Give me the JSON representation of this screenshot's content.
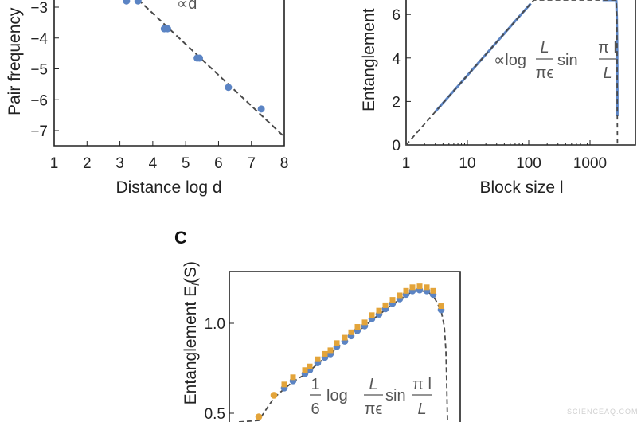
{
  "watermark": "SCIENCEAQ.COM",
  "colors": {
    "blue": "#5b84c4",
    "orange": "#e3a43a",
    "dashed": "#4a4a4a",
    "axis": "#222222",
    "annotation": "#555555"
  },
  "chart_data": [
    {
      "type": "scatter",
      "xlabel": "Distance log d",
      "ylabel": "Pair frequency",
      "annotation": "∝d",
      "xlim": [
        1,
        8
      ],
      "ylim": [
        -7.5,
        -2.7
      ],
      "xticks": [
        "1",
        "2",
        "3",
        "4",
        "5",
        "6",
        "7",
        "8"
      ],
      "yticks": [
        "−3",
        "−4",
        "−5",
        "−6",
        "−7"
      ],
      "points": [
        [
          3.2,
          -2.8
        ],
        [
          3.55,
          -2.8
        ],
        [
          4.35,
          -3.7
        ],
        [
          4.45,
          -3.7
        ],
        [
          5.35,
          -4.65
        ],
        [
          5.42,
          -4.65
        ],
        [
          6.3,
          -5.6
        ],
        [
          7.3,
          -6.3
        ]
      ],
      "fit_line": [
        [
          3.55,
          -2.75
        ],
        [
          8,
          -7.2
        ]
      ]
    },
    {
      "type": "line",
      "xlabel": "Block size l",
      "ylabel": "Entanglement",
      "xscale": "log",
      "xlim": [
        1,
        5000
      ],
      "ylim": [
        0,
        6.8
      ],
      "xticks": [
        "1",
        "10",
        "100",
        "1000"
      ],
      "yticks": [
        "0",
        "2",
        "4",
        "6"
      ],
      "annotation": {
        "prefix": "∝log",
        "frac1_num": "L",
        "frac1_den": "πϵ",
        "mid": "sin",
        "frac2_num": "π l",
        "frac2_den": "L"
      }
    },
    {
      "panel_label": "C",
      "type": "scatter",
      "ylabel": "Entanglement  E",
      "ylabel_sub": "l",
      "ylabel_tail": "(S)",
      "yticks": [
        "1.0",
        "0.5"
      ],
      "series": [
        {
          "color": "orange",
          "values": [
            0.48,
            0.6,
            0.66,
            0.7,
            0.74,
            0.76,
            0.8,
            0.83,
            0.85,
            0.89,
            0.92,
            0.95,
            0.98,
            1.005,
            1.045,
            1.07,
            1.1,
            1.13,
            1.155,
            1.18,
            1.2,
            1.205,
            1.2,
            1.18,
            1.095
          ]
        },
        {
          "color": "blue",
          "values": [
            null,
            null,
            0.64,
            0.68,
            0.72,
            0.74,
            0.78,
            0.81,
            0.83,
            0.87,
            0.9,
            0.93,
            0.96,
            0.985,
            1.025,
            1.05,
            1.08,
            1.11,
            1.135,
            1.16,
            1.18,
            1.185,
            1.18,
            1.16,
            1.075
          ]
        }
      ],
      "annotation": {
        "coef_num": "1",
        "coef_den": "6",
        "log": "log",
        "frac1_num": "L",
        "frac1_den": "πϵ",
        "mid": "sin",
        "frac2_num": "π l",
        "frac2_den": "L"
      }
    }
  ]
}
